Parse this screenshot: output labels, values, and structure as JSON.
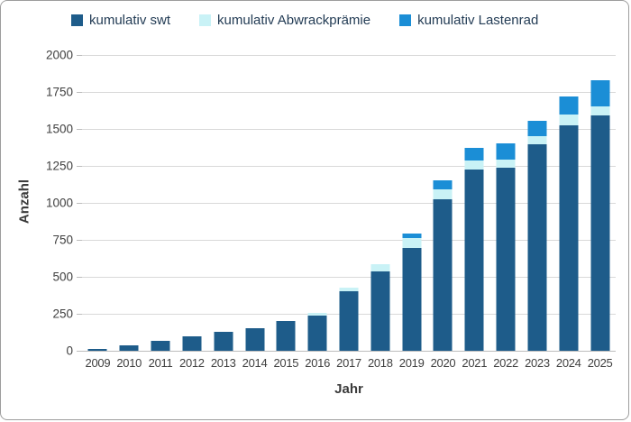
{
  "chart_data": {
    "type": "bar",
    "stacked": true,
    "title": "",
    "xlabel": "Jahr",
    "ylabel": "Anzahl",
    "ylim": [
      0,
      2000
    ],
    "ytick_step": 250,
    "grid": true,
    "legend_position": "top",
    "categories": [
      "2009",
      "2010",
      "2011",
      "2012",
      "2013",
      "2014",
      "2015",
      "2016",
      "2017",
      "2018",
      "2019",
      "2020",
      "2021",
      "2022",
      "2023",
      "2024",
      "2025"
    ],
    "series": [
      {
        "name": "kumulativ swt",
        "color": "#1e5c8a",
        "values": [
          10,
          35,
          65,
          100,
          130,
          150,
          200,
          240,
          400,
          535,
          695,
          1025,
          1225,
          1235,
          1395,
          1525,
          1590
        ]
      },
      {
        "name": "kumulativ Abwrackprämie",
        "color": "#c9f2f6",
        "values": [
          0,
          0,
          0,
          0,
          0,
          0,
          0,
          15,
          30,
          50,
          70,
          65,
          60,
          60,
          55,
          70,
          65
        ]
      },
      {
        "name": "kumulativ Lastenrad",
        "color": "#1b8ed6",
        "values": [
          0,
          0,
          0,
          0,
          0,
          0,
          0,
          0,
          0,
          0,
          25,
          65,
          85,
          105,
          105,
          125,
          175
        ]
      }
    ]
  },
  "style": {
    "gridline_color": "#d9d9d9",
    "axis_color": "#bdbdbd",
    "tick_label_color": "#404040",
    "legend_text_color": "#233c55"
  }
}
